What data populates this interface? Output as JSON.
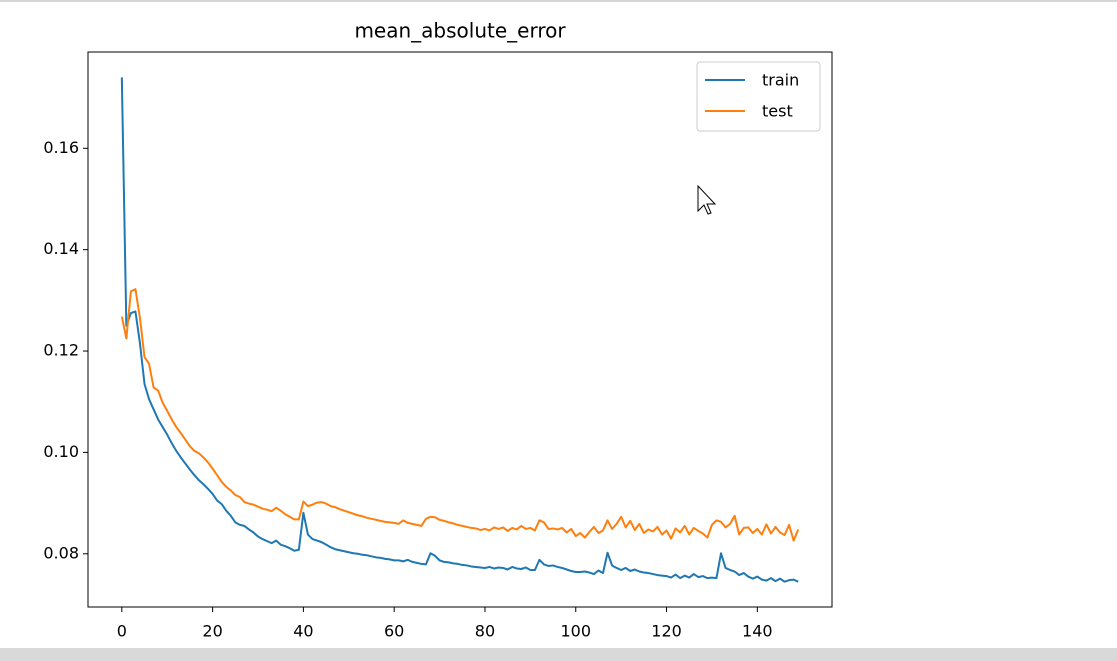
{
  "chart_data": {
    "type": "line",
    "title": "mean_absolute_error",
    "x": [
      0,
      1,
      2,
      3,
      4,
      5,
      6,
      7,
      8,
      9,
      10,
      11,
      12,
      13,
      14,
      15,
      16,
      17,
      18,
      19,
      20,
      21,
      22,
      23,
      24,
      25,
      26,
      27,
      28,
      29,
      30,
      31,
      32,
      33,
      34,
      35,
      36,
      37,
      38,
      39,
      40,
      41,
      42,
      43,
      44,
      45,
      46,
      47,
      48,
      49,
      50,
      51,
      52,
      53,
      54,
      55,
      56,
      57,
      58,
      59,
      60,
      61,
      62,
      63,
      64,
      65,
      66,
      67,
      68,
      69,
      70,
      71,
      72,
      73,
      74,
      75,
      76,
      77,
      78,
      79,
      80,
      81,
      82,
      83,
      84,
      85,
      86,
      87,
      88,
      89,
      90,
      91,
      92,
      93,
      94,
      95,
      96,
      97,
      98,
      99,
      100,
      101,
      102,
      103,
      104,
      105,
      106,
      107,
      108,
      109,
      110,
      111,
      112,
      113,
      114,
      115,
      116,
      117,
      118,
      119,
      120,
      121,
      122,
      123,
      124,
      125,
      126,
      127,
      128,
      129,
      130,
      131,
      132,
      133,
      134,
      135,
      136,
      137,
      138,
      139,
      140,
      141,
      142,
      143,
      144,
      145,
      146,
      147,
      148,
      149
    ],
    "series": [
      {
        "name": "train",
        "color": "#1f77b4",
        "values": [
          0.174,
          0.125,
          0.1275,
          0.1278,
          0.1215,
          0.1135,
          0.1105,
          0.1085,
          0.1065,
          0.105,
          0.1035,
          0.1018,
          0.1003,
          0.099,
          0.0978,
          0.0966,
          0.0955,
          0.0945,
          0.0937,
          0.0928,
          0.0918,
          0.0905,
          0.0898,
          0.0885,
          0.0875,
          0.0862,
          0.0857,
          0.0855,
          0.0848,
          0.0842,
          0.0834,
          0.0829,
          0.0825,
          0.0821,
          0.0826,
          0.0818,
          0.0815,
          0.0811,
          0.0806,
          0.0808,
          0.0881,
          0.0838,
          0.0829,
          0.0826,
          0.0823,
          0.0818,
          0.0813,
          0.0809,
          0.0807,
          0.0805,
          0.0803,
          0.0801,
          0.08,
          0.0798,
          0.0797,
          0.0795,
          0.0793,
          0.0792,
          0.079,
          0.0789,
          0.0787,
          0.0787,
          0.0785,
          0.0788,
          0.0784,
          0.0782,
          0.078,
          0.0779,
          0.0801,
          0.0796,
          0.0787,
          0.0784,
          0.0783,
          0.0781,
          0.078,
          0.0778,
          0.0777,
          0.0775,
          0.0774,
          0.0773,
          0.0772,
          0.0774,
          0.0771,
          0.0773,
          0.0772,
          0.0769,
          0.0774,
          0.0771,
          0.077,
          0.0773,
          0.0768,
          0.0768,
          0.0788,
          0.0779,
          0.0776,
          0.0777,
          0.0774,
          0.0772,
          0.0769,
          0.0766,
          0.0764,
          0.0764,
          0.0765,
          0.0763,
          0.076,
          0.0767,
          0.0762,
          0.0802,
          0.0777,
          0.0772,
          0.0768,
          0.0772,
          0.0766,
          0.0769,
          0.0765,
          0.0763,
          0.0762,
          0.076,
          0.0758,
          0.0757,
          0.0756,
          0.0753,
          0.0759,
          0.0752,
          0.0757,
          0.0753,
          0.076,
          0.0754,
          0.0756,
          0.0752,
          0.0753,
          0.0752,
          0.0801,
          0.0772,
          0.0768,
          0.0765,
          0.0758,
          0.0762,
          0.0755,
          0.0751,
          0.0755,
          0.0749,
          0.0747,
          0.0752,
          0.0746,
          0.0751,
          0.0745,
          0.0748,
          0.0749,
          0.0745
        ]
      },
      {
        "name": "test",
        "color": "#ff7f0e",
        "values": [
          0.1268,
          0.1225,
          0.1318,
          0.1322,
          0.1265,
          0.1188,
          0.1175,
          0.1128,
          0.1122,
          0.1098,
          0.1082,
          0.1065,
          0.105,
          0.1038,
          0.1025,
          0.1012,
          0.1003,
          0.0998,
          0.099,
          0.098,
          0.0968,
          0.0955,
          0.0942,
          0.0932,
          0.0925,
          0.0916,
          0.0912,
          0.0902,
          0.0899,
          0.0897,
          0.0893,
          0.0889,
          0.0887,
          0.0884,
          0.0891,
          0.0885,
          0.0878,
          0.0873,
          0.0868,
          0.0868,
          0.0903,
          0.0894,
          0.0897,
          0.0901,
          0.0902,
          0.0899,
          0.0894,
          0.0892,
          0.0888,
          0.0885,
          0.0882,
          0.0879,
          0.0876,
          0.0874,
          0.0871,
          0.0869,
          0.0867,
          0.0865,
          0.0863,
          0.0862,
          0.0861,
          0.0859,
          0.0866,
          0.0861,
          0.0859,
          0.0857,
          0.0855,
          0.0869,
          0.0873,
          0.0872,
          0.0867,
          0.0865,
          0.0862,
          0.086,
          0.0857,
          0.0855,
          0.0853,
          0.0851,
          0.085,
          0.0847,
          0.0849,
          0.0846,
          0.0852,
          0.0849,
          0.0852,
          0.0845,
          0.0851,
          0.0848,
          0.0855,
          0.0849,
          0.0851,
          0.0846,
          0.0866,
          0.0862,
          0.0849,
          0.085,
          0.0848,
          0.0851,
          0.0842,
          0.0849,
          0.0835,
          0.0841,
          0.0832,
          0.0843,
          0.0853,
          0.0841,
          0.0846,
          0.0866,
          0.0849,
          0.0859,
          0.0873,
          0.0852,
          0.0865,
          0.0847,
          0.0859,
          0.0841,
          0.0848,
          0.0844,
          0.0853,
          0.0838,
          0.0846,
          0.083,
          0.085,
          0.0842,
          0.0855,
          0.0838,
          0.0851,
          0.0845,
          0.084,
          0.0832,
          0.0857,
          0.0866,
          0.0863,
          0.0852,
          0.0859,
          0.0875,
          0.0838,
          0.0851,
          0.0852,
          0.0841,
          0.0849,
          0.0838,
          0.0858,
          0.084,
          0.0853,
          0.0842,
          0.0837,
          0.0857,
          0.0826,
          0.0848
        ]
      }
    ],
    "xlim": [
      -7.45,
      156.45
    ],
    "ylim": [
      0.0695,
      0.179
    ],
    "xticks": [
      0,
      20,
      40,
      60,
      80,
      100,
      120,
      140
    ],
    "yticks": [
      0.08,
      {
        "value": 0.1,
        "label": "0.10"
      },
      0.12,
      0.14,
      0.16
    ],
    "legend": "upper right"
  }
}
